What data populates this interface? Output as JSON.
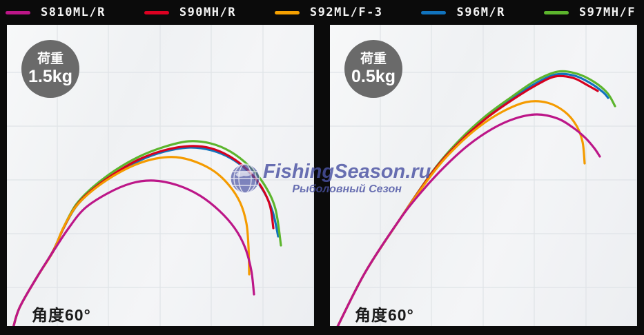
{
  "legend": {
    "items": [
      {
        "label": "S810ML/R",
        "color": "#bc1688"
      },
      {
        "label": "S90MH/R",
        "color": "#dc0021"
      },
      {
        "label": "S92ML/F-3",
        "color": "#f5a000"
      },
      {
        "label": "S96M/R",
        "color": "#1173bd"
      },
      {
        "label": "S97MH/F",
        "color": "#5cb52d"
      }
    ]
  },
  "panels": [
    {
      "load_label": "荷重",
      "load_value": "1.5kg",
      "angle_label": "角度60°"
    },
    {
      "load_label": "荷重",
      "load_value": "0.5kg",
      "angle_label": "角度60°"
    }
  ],
  "watermark": {
    "title": "FishingSeason.ru",
    "subtitle": "Рыболовный Сезон",
    "color": "#4a52a3"
  },
  "colors": {
    "background": "#0b0b0b",
    "panel_bg": "#f1f2f4",
    "grid_line": "#dfe3e7",
    "badge_bg": "#6a6a6a",
    "angle_text": "#1b1b1b"
  },
  "chart_data": [
    {
      "type": "line",
      "title": "Rod bend curves, load 1.5kg, angle 60°",
      "load": "1.5kg",
      "angle": "60°",
      "coords": "panel-relative pixels, canvas 445x437, origin top-left, no numeric axes (grid only)",
      "grid": {
        "v_lines": [
          73,
          147,
          222,
          296,
          371,
          444
        ],
        "h_lines": [
          69,
          147,
          225,
          303,
          381
        ]
      },
      "draw_order": [
        3,
        4,
        1,
        2,
        0
      ],
      "series": [
        {
          "name": "S810ML/R",
          "color": "#bc1688",
          "points": [
            [
              8,
              444
            ],
            [
              18,
              411
            ],
            [
              43,
              367
            ],
            [
              67,
              329
            ],
            [
              88,
              297
            ],
            [
              112,
              267
            ],
            [
              145,
              245
            ],
            [
              180,
              230
            ],
            [
              213,
              226
            ],
            [
              248,
              233
            ],
            [
              280,
              248
            ],
            [
              308,
              270
            ],
            [
              330,
              295
            ],
            [
              345,
              323
            ],
            [
              354,
              356
            ],
            [
              358,
              391
            ]
          ]
        },
        {
          "name": "S90MH/R",
          "color": "#d5001f",
          "points": [
            [
              8,
              444
            ],
            [
              18,
              411
            ],
            [
              43,
              367
            ],
            [
              67,
              328
            ],
            [
              82,
              295
            ],
            [
              100,
              263
            ],
            [
              124,
              239
            ],
            [
              157,
              215
            ],
            [
              192,
              195
            ],
            [
              228,
              182
            ],
            [
              265,
              176
            ],
            [
              295,
              179
            ],
            [
              323,
              191
            ],
            [
              348,
              210
            ],
            [
              368,
              234
            ],
            [
              381,
              262
            ],
            [
              386,
              295
            ]
          ]
        },
        {
          "name": "S92ML/F-3",
          "color": "#f49b00",
          "points": [
            [
              8,
              444
            ],
            [
              18,
              411
            ],
            [
              43,
              367
            ],
            [
              67,
              329
            ],
            [
              81,
              296
            ],
            [
              99,
              265
            ],
            [
              122,
              242
            ],
            [
              153,
              220
            ],
            [
              186,
              203
            ],
            [
              216,
              194
            ],
            [
              245,
              192
            ],
            [
              274,
              199
            ],
            [
              301,
              213
            ],
            [
              322,
              233
            ],
            [
              338,
              258
            ],
            [
              347,
              288
            ],
            [
              350,
              322
            ],
            [
              351,
              362
            ]
          ]
        },
        {
          "name": "S96M/R",
          "color": "#1173bd",
          "points": [
            [
              8,
              444
            ],
            [
              18,
              411
            ],
            [
              43,
              367
            ],
            [
              67,
              328
            ],
            [
              82,
              295
            ],
            [
              100,
              264
            ],
            [
              124,
              240
            ],
            [
              157,
              217
            ],
            [
              192,
              197
            ],
            [
              228,
              184
            ],
            [
              265,
              178
            ],
            [
              296,
              182
            ],
            [
              325,
              194
            ],
            [
              351,
              214
            ],
            [
              371,
              240
            ],
            [
              385,
              271
            ],
            [
              393,
              307
            ]
          ]
        },
        {
          "name": "S97MH/F",
          "color": "#5cb52d",
          "points": [
            [
              8,
              444
            ],
            [
              18,
              411
            ],
            [
              43,
              367
            ],
            [
              67,
              328
            ],
            [
              82,
              294
            ],
            [
              100,
              261
            ],
            [
              124,
              236
            ],
            [
              157,
              211
            ],
            [
              192,
              191
            ],
            [
              228,
              177
            ],
            [
              263,
              169
            ],
            [
              295,
              172
            ],
            [
              324,
              184
            ],
            [
              351,
              205
            ],
            [
              373,
              232
            ],
            [
              389,
              267
            ],
            [
              397,
              320
            ]
          ]
        }
      ]
    },
    {
      "type": "line",
      "title": "Rod bend curves, load 0.5kg, angle 60°",
      "load": "0.5kg",
      "angle": "60°",
      "coords": "panel-relative pixels, canvas 445x437, origin top-left, no numeric axes (grid only)",
      "grid": {
        "v_lines": [
          73,
          147,
          222,
          296,
          371,
          444
        ],
        "h_lines": [
          69,
          147,
          225,
          303,
          381
        ]
      },
      "draw_order": [
        3,
        4,
        1,
        2,
        0
      ],
      "series": [
        {
          "name": "S810ML/R",
          "color": "#bc1688",
          "points": [
            [
              8,
              444
            ],
            [
              50,
              361
            ],
            [
              100,
              284
            ],
            [
              132,
              243
            ],
            [
              165,
              207
            ],
            [
              200,
              175
            ],
            [
              235,
              151
            ],
            [
              268,
              136
            ],
            [
              300,
              130
            ],
            [
              330,
              136
            ],
            [
              352,
              149
            ],
            [
              370,
              164
            ],
            [
              383,
              179
            ],
            [
              391,
              191
            ]
          ]
        },
        {
          "name": "S90MH/R",
          "color": "#d5001f",
          "points": [
            [
              8,
              444
            ],
            [
              50,
              361
            ],
            [
              100,
              284
            ],
            [
              150,
              212
            ],
            [
              188,
              170
            ],
            [
              226,
              136
            ],
            [
              264,
              109
            ],
            [
              298,
              88
            ],
            [
              326,
              75
            ],
            [
              352,
              77
            ],
            [
              372,
              87
            ],
            [
              388,
              96
            ]
          ]
        },
        {
          "name": "S92ML/F-3",
          "color": "#f49b00",
          "points": [
            [
              8,
              444
            ],
            [
              50,
              361
            ],
            [
              100,
              284
            ],
            [
              150,
              214
            ],
            [
              183,
              177
            ],
            [
              216,
              148
            ],
            [
              250,
              126
            ],
            [
              285,
              112
            ],
            [
              315,
              113
            ],
            [
              340,
              126
            ],
            [
              357,
              146
            ],
            [
              366,
              170
            ],
            [
              369,
              201
            ]
          ]
        },
        {
          "name": "S96M/R",
          "color": "#1173bd",
          "points": [
            [
              8,
              444
            ],
            [
              50,
              361
            ],
            [
              100,
              284
            ],
            [
              150,
              212
            ],
            [
              188,
              169
            ],
            [
              226,
              134
            ],
            [
              264,
              107
            ],
            [
              298,
              85
            ],
            [
              328,
              72
            ],
            [
              355,
              74
            ],
            [
              378,
              85
            ],
            [
              396,
              98
            ],
            [
              403,
              106
            ]
          ]
        },
        {
          "name": "S97MH/F",
          "color": "#5cb52d",
          "points": [
            [
              8,
              444
            ],
            [
              50,
              361
            ],
            [
              100,
              284
            ],
            [
              150,
              211
            ],
            [
              188,
              167
            ],
            [
              226,
              132
            ],
            [
              264,
              104
            ],
            [
              298,
              81
            ],
            [
              330,
              68
            ],
            [
              358,
              71
            ],
            [
              383,
              83
            ],
            [
              402,
              99
            ],
            [
              413,
              118
            ]
          ]
        }
      ]
    }
  ]
}
